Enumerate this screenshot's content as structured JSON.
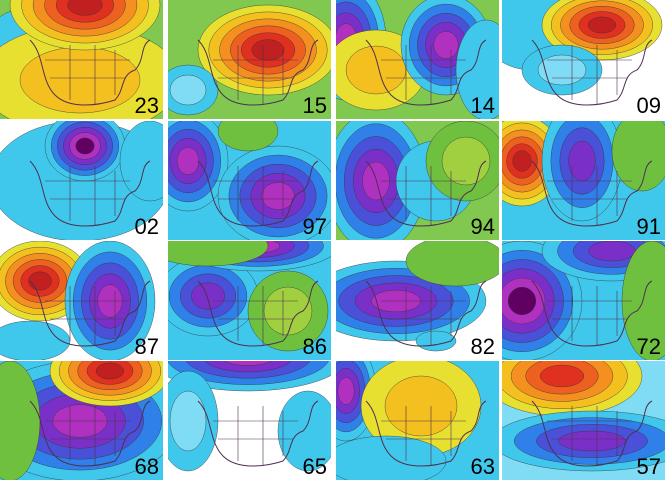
{
  "panels": [
    {
      "label": "23"
    },
    {
      "label": "15"
    },
    {
      "label": "14"
    },
    {
      "label": "09"
    },
    {
      "label": "02"
    },
    {
      "label": "97"
    },
    {
      "label": "94"
    },
    {
      "label": "91"
    },
    {
      "label": "87"
    },
    {
      "label": "86"
    },
    {
      "label": "82"
    },
    {
      "label": "72"
    },
    {
      "label": "68"
    },
    {
      "label": "65"
    },
    {
      "label": "63"
    },
    {
      "label": "57"
    }
  ]
}
